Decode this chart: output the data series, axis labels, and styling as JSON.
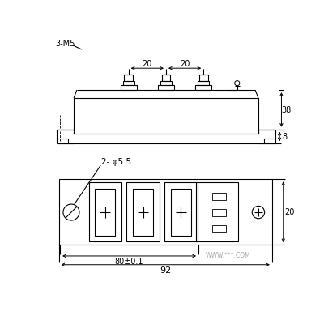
{
  "bg_color": "#ffffff",
  "line_color": "#000000",
  "watermark": "WWW.***.COM",
  "dim_20_1": "20",
  "dim_20_2": "20",
  "dim_38": "38",
  "dim_8": "8",
  "dim_2phi55": "2- φ5.5",
  "dim_80": "80±0.1",
  "dim_92": "92",
  "dim_3m5": "3-M5",
  "dim_20_r": "20"
}
